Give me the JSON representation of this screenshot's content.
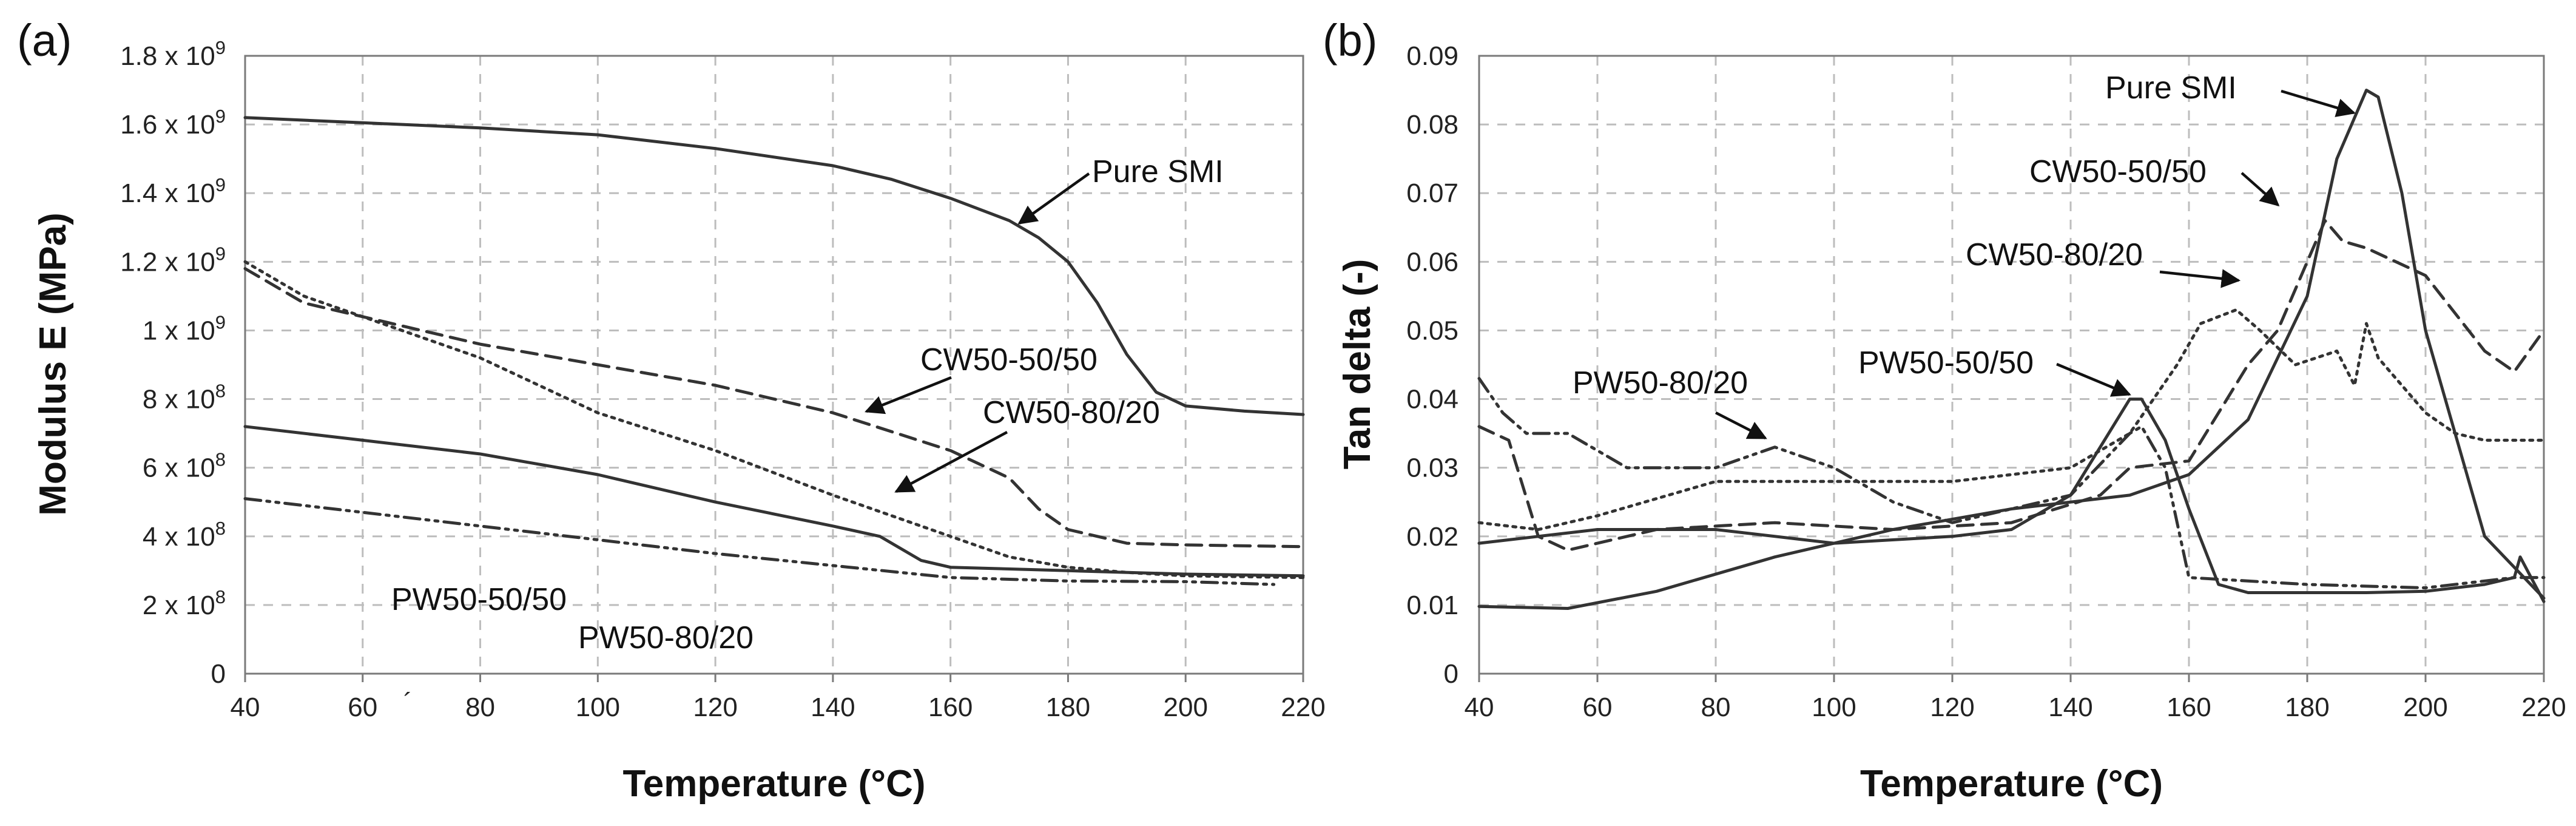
{
  "chart_data": [
    {
      "panel_label": "(a)",
      "type": "line",
      "xlabel": "Temperature (°C)",
      "ylabel": "Modulus E (MPa)",
      "xlim": [
        40,
        220
      ],
      "ylim": [
        0,
        1800000000
      ],
      "x_ticks": [
        40,
        60,
        80,
        100,
        120,
        140,
        160,
        180,
        200,
        220
      ],
      "x_tick_labels": [
        "40",
        "60",
        "80",
        "100",
        "120",
        "140",
        "160",
        "180",
        "200",
        "220"
      ],
      "y_ticks": [
        {
          "value": 0,
          "label": "0"
        },
        {
          "value": 200000000,
          "mantissa": "2 x 10",
          "exp": "8"
        },
        {
          "value": 400000000,
          "mantissa": "4 x 10",
          "exp": "8"
        },
        {
          "value": 600000000,
          "mantissa": "6 x 10",
          "exp": "8"
        },
        {
          "value": 800000000,
          "mantissa": "8 x 10",
          "exp": "8"
        },
        {
          "value": 1000000000,
          "mantissa": "1 x 10",
          "exp": "9"
        },
        {
          "value": 1200000000,
          "mantissa": "1.2 x 10",
          "exp": "9"
        },
        {
          "value": 1400000000,
          "mantissa": "1.4 x 10",
          "exp": "9"
        },
        {
          "value": 1600000000,
          "mantissa": "1.6 x 10",
          "exp": "9"
        },
        {
          "value": 1800000000,
          "mantissa": "1.8 x 10",
          "exp": "9"
        }
      ],
      "grid": true,
      "series": [
        {
          "name": "Pure SMI",
          "dash": "solid",
          "x": [
            40,
            60,
            80,
            100,
            120,
            140,
            150,
            160,
            170,
            175,
            180,
            185,
            190,
            195,
            200,
            210,
            220
          ],
          "y": [
            1620000000,
            1605000000,
            1590000000,
            1570000000,
            1530000000,
            1480000000,
            1440000000,
            1385000000,
            1320000000,
            1270000000,
            1200000000,
            1080000000,
            930000000,
            820000000,
            780000000,
            765000000,
            755000000
          ]
        },
        {
          "name": "CW50-50/50",
          "dash": "dashed",
          "x": [
            40,
            50,
            60,
            80,
            100,
            120,
            140,
            160,
            170,
            175,
            180,
            190,
            200,
            220
          ],
          "y": [
            1180000000,
            1080000000,
            1040000000,
            960000000,
            900000000,
            840000000,
            760000000,
            650000000,
            570000000,
            480000000,
            420000000,
            380000000,
            375000000,
            370000000
          ]
        },
        {
          "name": "CW50-80/20",
          "dash": "dotted",
          "x": [
            40,
            50,
            60,
            80,
            100,
            120,
            140,
            150,
            160,
            170,
            180,
            190,
            200,
            220
          ],
          "y": [
            1200000000,
            1100000000,
            1040000000,
            920000000,
            760000000,
            650000000,
            520000000,
            460000000,
            400000000,
            340000000,
            310000000,
            295000000,
            285000000,
            280000000
          ]
        },
        {
          "name": "PW50-50/50",
          "dash": "solid",
          "x": [
            40,
            60,
            80,
            100,
            120,
            140,
            148,
            155,
            160,
            180,
            200,
            220
          ],
          "y": [
            720000000,
            680000000,
            640000000,
            580000000,
            500000000,
            430000000,
            400000000,
            330000000,
            310000000,
            300000000,
            290000000,
            285000000
          ]
        },
        {
          "name": "PW50-80/20",
          "dash": "dashdotdot",
          "x": [
            40,
            60,
            80,
            100,
            120,
            140,
            160,
            180,
            200,
            215
          ],
          "y": [
            510000000,
            470000000,
            430000000,
            390000000,
            350000000,
            315000000,
            280000000,
            270000000,
            268000000,
            260000000
          ]
        }
      ],
      "annotations": [
        {
          "text": "Pure SMI",
          "series": "Pure SMI"
        },
        {
          "text": "CW50-50/50",
          "series": "CW50-50/50"
        },
        {
          "text": "CW50-80/20",
          "series": "CW50-80/20"
        },
        {
          "text": "PW50-50/50",
          "series": "PW50-50/50"
        },
        {
          "text": "PW50-80/20",
          "series": "PW50-80/20"
        }
      ],
      "stray_mark": "´"
    },
    {
      "panel_label": "(b)",
      "type": "line",
      "xlabel": "Temperature (°C)",
      "ylabel": "Tan delta (-)",
      "xlim": [
        40,
        220
      ],
      "ylim": [
        0,
        0.09
      ],
      "x_ticks": [
        40,
        60,
        80,
        100,
        120,
        140,
        160,
        180,
        200,
        220
      ],
      "x_tick_labels": [
        "40",
        "60",
        "80",
        "100",
        "120",
        "140",
        "160",
        "180",
        "200",
        "220"
      ],
      "y_ticks": [
        {
          "value": 0,
          "label": "0"
        },
        {
          "value": 0.01,
          "label": "0.01"
        },
        {
          "value": 0.02,
          "label": "0.02"
        },
        {
          "value": 0.03,
          "label": "0.03"
        },
        {
          "value": 0.04,
          "label": "0.04"
        },
        {
          "value": 0.05,
          "label": "0.05"
        },
        {
          "value": 0.06,
          "label": "0.06"
        },
        {
          "value": 0.07,
          "label": "0.07"
        },
        {
          "value": 0.08,
          "label": "0.08"
        },
        {
          "value": 0.09,
          "label": "0.09"
        }
      ],
      "grid": true,
      "series": [
        {
          "name": "Pure SMI",
          "dash": "solid",
          "x": [
            40,
            55,
            70,
            90,
            110,
            130,
            150,
            160,
            170,
            180,
            185,
            190,
            192,
            196,
            200,
            210,
            220
          ],
          "y": [
            0.0098,
            0.0095,
            0.012,
            0.017,
            0.021,
            0.024,
            0.026,
            0.029,
            0.037,
            0.055,
            0.075,
            0.085,
            0.084,
            0.07,
            0.05,
            0.02,
            0.011
          ]
        },
        {
          "name": "CW50-50/50",
          "dash": "dashed",
          "x": [
            40,
            45,
            50,
            55,
            70,
            90,
            110,
            130,
            145,
            150,
            160,
            165,
            170,
            175,
            180,
            183,
            186,
            190,
            200,
            210,
            215,
            220
          ],
          "y": [
            0.036,
            0.034,
            0.02,
            0.018,
            0.021,
            0.022,
            0.021,
            0.022,
            0.026,
            0.03,
            0.031,
            0.038,
            0.045,
            0.05,
            0.06,
            0.066,
            0.063,
            0.062,
            0.058,
            0.047,
            0.044,
            0.05
          ]
        },
        {
          "name": "CW50-80/20",
          "dash": "dotted",
          "x": [
            40,
            50,
            60,
            80,
            100,
            120,
            140,
            150,
            158,
            162,
            168,
            172,
            178,
            185,
            188,
            190,
            192,
            200,
            205,
            210,
            220
          ],
          "y": [
            0.022,
            0.021,
            0.023,
            0.028,
            0.028,
            0.028,
            0.03,
            0.035,
            0.045,
            0.051,
            0.053,
            0.05,
            0.045,
            0.047,
            0.042,
            0.051,
            0.046,
            0.038,
            0.035,
            0.034,
            0.034
          ]
        },
        {
          "name": "PW50-50/50",
          "dash": "solid",
          "x": [
            40,
            50,
            60,
            80,
            100,
            120,
            130,
            140,
            145,
            150,
            152,
            156,
            160,
            165,
            170,
            190,
            200,
            210,
            215,
            216,
            220
          ],
          "y": [
            0.019,
            0.02,
            0.021,
            0.021,
            0.019,
            0.02,
            0.021,
            0.026,
            0.033,
            0.04,
            0.04,
            0.034,
            0.024,
            0.013,
            0.0118,
            0.0118,
            0.012,
            0.013,
            0.014,
            0.017,
            0.0105
          ]
        },
        {
          "name": "PW50-80/20",
          "dash": "dashdotdot",
          "x": [
            40,
            44,
            48,
            55,
            65,
            80,
            90,
            100,
            110,
            120,
            130,
            140,
            150,
            152,
            156,
            160,
            180,
            200,
            215,
            220
          ],
          "y": [
            0.043,
            0.038,
            0.035,
            0.035,
            0.03,
            0.03,
            0.033,
            0.03,
            0.025,
            0.022,
            0.024,
            0.026,
            0.035,
            0.036,
            0.03,
            0.014,
            0.013,
            0.0125,
            0.014,
            0.014
          ]
        }
      ],
      "annotations": [
        {
          "text": "Pure SMI",
          "series": "Pure SMI"
        },
        {
          "text": "CW50-50/50",
          "series": "CW50-50/50"
        },
        {
          "text": "CW50-80/20",
          "series": "CW50-80/20"
        },
        {
          "text": "PW50-50/50",
          "series": "PW50-50/50"
        },
        {
          "text": "PW50-80/20",
          "series": "PW50-80/20"
        }
      ]
    }
  ]
}
